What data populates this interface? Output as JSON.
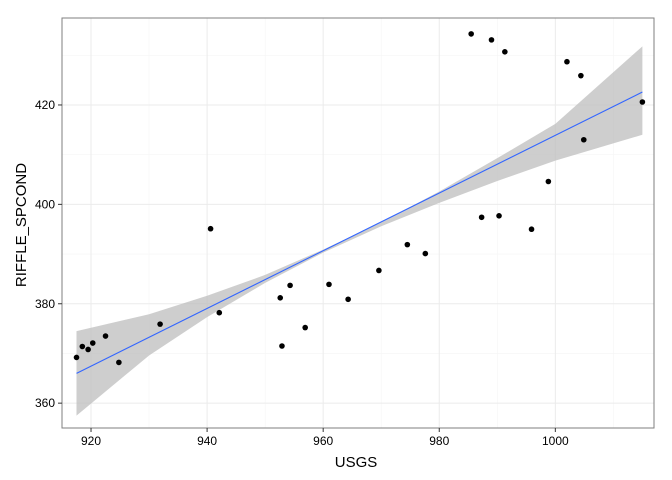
{
  "chart_data": {
    "type": "scatter",
    "title": "",
    "xlabel": "USGS",
    "ylabel": "RIFFLE_SPCOND",
    "xlim": [
      915,
      1017
    ],
    "ylim": [
      355,
      437.5
    ],
    "x_ticks": [
      920,
      940,
      960,
      980,
      1000
    ],
    "x_tick_labels": [
      "920",
      "940",
      "960",
      "980",
      "1000"
    ],
    "y_ticks": [
      360,
      380,
      400,
      420
    ],
    "y_tick_labels": [
      "360",
      "380",
      "400",
      "420"
    ],
    "grid": true,
    "legend": "none",
    "points": [
      {
        "x": 917.5,
        "y": 369.2
      },
      {
        "x": 918.5,
        "y": 371.4
      },
      {
        "x": 919.5,
        "y": 370.8
      },
      {
        "x": 920.3,
        "y": 372.1
      },
      {
        "x": 922.5,
        "y": 373.5
      },
      {
        "x": 924.8,
        "y": 368.2
      },
      {
        "x": 931.9,
        "y": 375.9
      },
      {
        "x": 940.6,
        "y": 395.1
      },
      {
        "x": 942.1,
        "y": 378.2
      },
      {
        "x": 952.6,
        "y": 381.2
      },
      {
        "x": 952.9,
        "y": 371.5
      },
      {
        "x": 954.3,
        "y": 383.7
      },
      {
        "x": 956.9,
        "y": 375.2
      },
      {
        "x": 961.0,
        "y": 383.9
      },
      {
        "x": 964.3,
        "y": 380.9
      },
      {
        "x": 969.6,
        "y": 386.7
      },
      {
        "x": 974.5,
        "y": 391.9
      },
      {
        "x": 977.6,
        "y": 390.1
      },
      {
        "x": 985.5,
        "y": 434.3
      },
      {
        "x": 987.3,
        "y": 397.4
      },
      {
        "x": 989.0,
        "y": 433.1
      },
      {
        "x": 990.3,
        "y": 397.7
      },
      {
        "x": 991.3,
        "y": 430.7
      },
      {
        "x": 995.9,
        "y": 395.0
      },
      {
        "x": 998.8,
        "y": 404.6
      },
      {
        "x": 1002.0,
        "y": 428.7
      },
      {
        "x": 1004.4,
        "y": 425.9
      },
      {
        "x": 1004.9,
        "y": 413.0
      },
      {
        "x": 1015.0,
        "y": 420.6
      }
    ],
    "fit_line": {
      "x": [
        917.5,
        1015.0
      ],
      "y": [
        366.0,
        422.6
      ],
      "color": "#3366FF"
    },
    "confidence_band": {
      "x": [
        917.5,
        930,
        940,
        950,
        960,
        970,
        980,
        990,
        1000,
        1015.0
      ],
      "lower": [
        357.5,
        369.6,
        377.3,
        384.2,
        390.3,
        395.6,
        400.3,
        404.7,
        408.8,
        414.0
      ],
      "upper": [
        374.5,
        377.9,
        381.6,
        385.8,
        390.9,
        396.4,
        402.6,
        409.3,
        416.2,
        431.8
      ],
      "color": "#999999"
    },
    "colors": {
      "panel_background": "#FFFFFF",
      "panel_border": "#7F7F7F",
      "grid_major": "#EBEBEB",
      "grid_minor": "#F5F5F5",
      "points": "#000000",
      "band_fill": "#BEBEBE"
    }
  }
}
